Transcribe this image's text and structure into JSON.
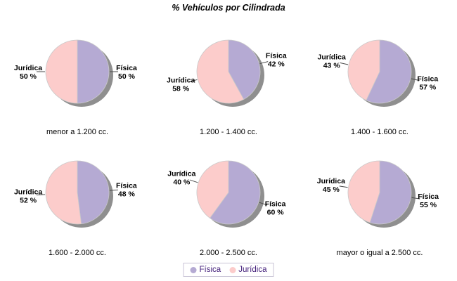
{
  "title": "% Vehículos por Cilindrada",
  "colors": {
    "series": {
      "Física": "#b5aad3",
      "Jurídica": "#fccccb"
    },
    "shadow": "#8f8f8f",
    "slice_outline": "#c9c9c9",
    "leader_line": "#4a4a4a",
    "legend_border": "#c9c4d6",
    "legend_text": "#45217c"
  },
  "legend": {
    "position": "bottom-center",
    "items": [
      {
        "label": "Física",
        "color": "#b5aad3"
      },
      {
        "label": "Jurídica",
        "color": "#fccccb"
      }
    ]
  },
  "chart_data": [
    {
      "type": "pie",
      "title": "menor a 1.200 cc.",
      "series": [
        {
          "name": "Física",
          "value": 50,
          "label": "50 %"
        },
        {
          "name": "Jurídica",
          "value": 50,
          "label": "50 %"
        }
      ]
    },
    {
      "type": "pie",
      "title": "1.200 - 1.400 cc.",
      "series": [
        {
          "name": "Física",
          "value": 42,
          "label": "42 %"
        },
        {
          "name": "Jurídica",
          "value": 58,
          "label": "58 %"
        }
      ]
    },
    {
      "type": "pie",
      "title": "1.400 - 1.600 cc.",
      "series": [
        {
          "name": "Física",
          "value": 57,
          "label": "57 %"
        },
        {
          "name": "Jurídica",
          "value": 43,
          "label": "43 %"
        }
      ]
    },
    {
      "type": "pie",
      "title": "1.600 - 2.000 cc.",
      "series": [
        {
          "name": "Física",
          "value": 48,
          "label": "48 %"
        },
        {
          "name": "Jurídica",
          "value": 52,
          "label": "52 %"
        }
      ]
    },
    {
      "type": "pie",
      "title": "2.000 - 2.500 cc.",
      "series": [
        {
          "name": "Física",
          "value": 60,
          "label": "60 %"
        },
        {
          "name": "Jurídica",
          "value": 40,
          "label": "40 %"
        }
      ]
    },
    {
      "type": "pie",
      "title": "mayor o igual a 2.500 cc.",
      "series": [
        {
          "name": "Física",
          "value": 55,
          "label": "55 %"
        },
        {
          "name": "Jurídica",
          "value": 45,
          "label": "45 %"
        }
      ]
    }
  ]
}
